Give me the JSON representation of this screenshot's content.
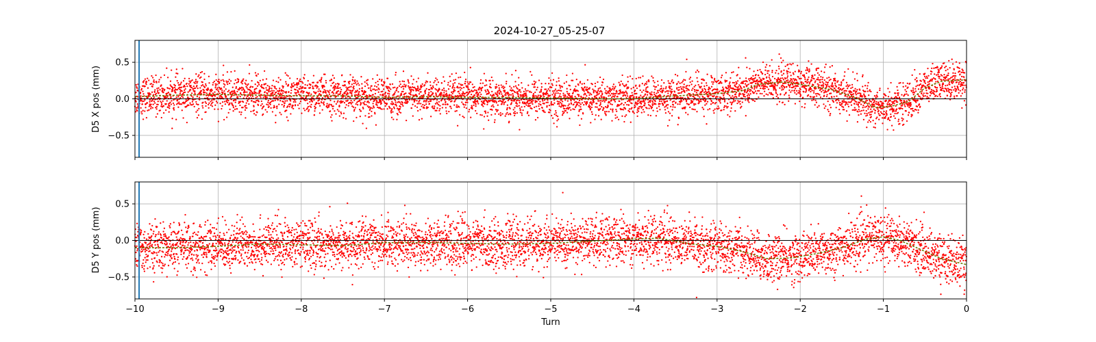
{
  "chart_data": {
    "title": "2024-10-27_05-25-07",
    "type": "scatter",
    "colors": {
      "points": "#ff0000",
      "trend": "#6b7a00",
      "marker_line": "#1f77b4",
      "zero_line": "#000000"
    },
    "grid": true,
    "shared_x": {
      "label": "Turn",
      "xlim": [
        -10,
        0
      ],
      "ticks": [
        -10,
        -9,
        -8,
        -7,
        -6,
        -5,
        -4,
        -3,
        -2,
        -1,
        0
      ],
      "tick_labels": [
        "−10",
        "−9",
        "−8",
        "−7",
        "−6",
        "−5",
        "−4",
        "−3",
        "−2",
        "−1",
        "0"
      ]
    },
    "vertical_marker_x": -9.95,
    "panels": [
      {
        "ylabel": "D5 X pos (mm)",
        "ylim": [
          -0.8,
          0.8
        ],
        "yticks": [
          -0.5,
          0.0,
          0.5
        ],
        "ytick_labels": [
          "−0.5",
          "0.0",
          "0.5"
        ],
        "spread": 0.13,
        "trend": [
          [
            -10,
            0.03
          ],
          [
            -9.5,
            0.05
          ],
          [
            -9,
            0.06
          ],
          [
            -8.5,
            0.05
          ],
          [
            -8,
            0.04
          ],
          [
            -7.5,
            0.04
          ],
          [
            -7,
            0.02
          ],
          [
            -6.5,
            0.03
          ],
          [
            -6,
            0.02
          ],
          [
            -5.5,
            0.02
          ],
          [
            -5,
            0.01
          ],
          [
            -4.5,
            0.0
          ],
          [
            -4,
            0.0
          ],
          [
            -3.5,
            0.04
          ],
          [
            -3,
            0.07
          ],
          [
            -2.7,
            0.11
          ],
          [
            -2.5,
            0.2
          ],
          [
            -2.2,
            0.23
          ],
          [
            -1.9,
            0.18
          ],
          [
            -1.6,
            0.12
          ],
          [
            -1.3,
            0.0
          ],
          [
            -1.1,
            -0.12
          ],
          [
            -0.9,
            -0.1
          ],
          [
            -0.7,
            -0.04
          ],
          [
            -0.5,
            0.15
          ],
          [
            -0.3,
            0.24
          ],
          [
            0,
            0.26
          ]
        ]
      },
      {
        "ylabel": "D5 Y pos (mm)",
        "ylim": [
          -0.8,
          0.8
        ],
        "yticks": [
          -0.5,
          0.0,
          0.5
        ],
        "ytick_labels": [
          "−0.5",
          "0.0",
          "0.5"
        ],
        "spread": 0.16,
        "trend": [
          [
            -10,
            -0.1
          ],
          [
            -9.5,
            -0.1
          ],
          [
            -9,
            -0.08
          ],
          [
            -8.5,
            -0.05
          ],
          [
            -8,
            -0.06
          ],
          [
            -7.5,
            -0.07
          ],
          [
            -7,
            -0.03
          ],
          [
            -6.5,
            -0.03
          ],
          [
            -6,
            -0.04
          ],
          [
            -5.5,
            -0.05
          ],
          [
            -5,
            -0.04
          ],
          [
            -4.5,
            -0.01
          ],
          [
            -4,
            0.02
          ],
          [
            -3.7,
            0.03
          ],
          [
            -3.3,
            -0.05
          ],
          [
            -3,
            -0.08
          ],
          [
            -2.7,
            -0.15
          ],
          [
            -2.4,
            -0.25
          ],
          [
            -2.1,
            -0.24
          ],
          [
            -1.8,
            -0.18
          ],
          [
            -1.5,
            -0.1
          ],
          [
            -1.2,
            0.02
          ],
          [
            -1,
            0.05
          ],
          [
            -0.8,
            0.0
          ],
          [
            -0.5,
            -0.15
          ],
          [
            -0.3,
            -0.25
          ],
          [
            0,
            -0.33
          ]
        ]
      }
    ]
  }
}
